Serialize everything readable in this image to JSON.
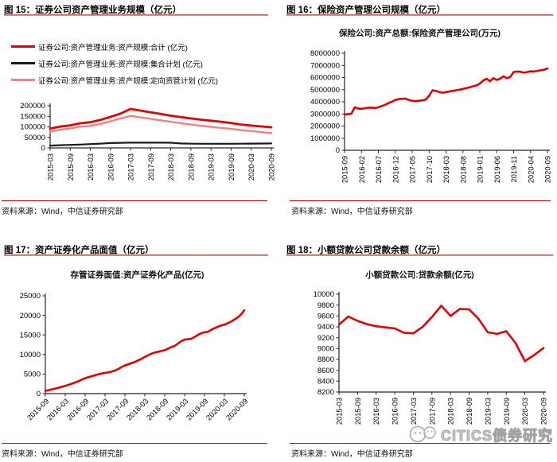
{
  "source_label": "资料来源：Wind，中信证券研究部",
  "watermark": {
    "text": "CITICS债券研究",
    "icon": "wechat-bubbles-icon"
  },
  "colors": {
    "red": "#e00000",
    "pink": "#f48080",
    "black": "#1a1a1a",
    "axis": "#262626",
    "title_rule": "#cf5b5b",
    "source_rule": "#b00c0c",
    "watermark_gray": "#a8a8a8"
  },
  "charts": [
    {
      "id": "fig15",
      "header": "图 15：证券公司资产管理业务规模（亿元）",
      "inner_title": "",
      "chart_data": {
        "type": "line",
        "legend_position": "top-left",
        "grid": false,
        "ylim": [
          0,
          200000
        ],
        "y_ticks": [
          0,
          50000,
          100000,
          150000,
          200000
        ],
        "x_tick_labels": [
          "2015-03",
          "2015-09",
          "2016-03",
          "2016-09",
          "2017-03",
          "2017-09",
          "2018-03",
          "2018-09",
          "2019-03",
          "2019-09",
          "2020-03",
          "2020-09"
        ],
        "x_label_every": 2,
        "categories": [
          "2015-03",
          "2015-06",
          "2015-09",
          "2015-12",
          "2016-03",
          "2016-06",
          "2016-09",
          "2016-12",
          "2017-03",
          "2017-06",
          "2017-09",
          "2017-12",
          "2018-03",
          "2018-06",
          "2018-09",
          "2018-12",
          "2019-03",
          "2019-06",
          "2019-09",
          "2019-12",
          "2020-03",
          "2020-06",
          "2020-09"
        ],
        "series": [
          {
            "name": "证券公司:资产管理业务:资产规模:合计 (亿元)",
            "color": "red",
            "values": [
              92000,
              101000,
              107000,
              117000,
              122000,
              133000,
              147000,
              163000,
              185000,
              177000,
              169000,
              161000,
              153000,
              146000,
              140000,
              134000,
              129000,
              124000,
              118000,
              111000,
              106000,
              102000,
              98000
            ]
          },
          {
            "name": "证券公司:资产管理业务:资产规模:集合计划 (亿元)",
            "color": "black",
            "values": [
              11000,
              13000,
              14500,
              16000,
              18000,
              20500,
              23000,
              24000,
              25000,
              25000,
              25000,
              25000,
              24500,
              21000,
              20000,
              19500,
              19500,
              19600,
              19800,
              20000,
              20300,
              20700,
              21200
            ]
          },
          {
            "name": "证券公司:资产管理业务:资产规模:定向资管计划 (亿元)",
            "color": "pink",
            "values": [
              78000,
              86000,
              92000,
              101000,
              105000,
              114000,
              126000,
              140000,
              152000,
              145000,
              138000,
              131000,
              124000,
              117000,
              111000,
              105000,
              100000,
              95000,
              90000,
              84000,
              80000,
              75000,
              70000
            ]
          }
        ]
      }
    },
    {
      "id": "fig16",
      "header": "图 16：保险资产管理公司规模（亿元）",
      "inner_title": "保险公司:资产总额:保险资产管理公司(万元)",
      "chart_data": {
        "type": "line",
        "grid": false,
        "ylim": [
          0,
          8000000
        ],
        "y_ticks": [
          0,
          1000000,
          2000000,
          3000000,
          4000000,
          5000000,
          6000000,
          7000000,
          8000000
        ],
        "x_tick_labels": [
          "2015-09",
          "2016-02",
          "2016-07",
          "2016-12",
          "2017-05",
          "2017-10",
          "2018-03",
          "2018-08",
          "2019-01",
          "2019-06",
          "2019-11",
          "2020-04",
          "2020-09"
        ],
        "x_label_every": 5,
        "series": [
          {
            "name": "保险公司:资产总额:保险资产管理公司(万元)",
            "color": "red",
            "values": [
              2950000,
              2980000,
              3010000,
              3540000,
              3450000,
              3420000,
              3470000,
              3500000,
              3520000,
              3480000,
              3550000,
              3650000,
              3750000,
              3900000,
              4000000,
              4150000,
              4220000,
              4250000,
              4260000,
              4150000,
              4080000,
              4050000,
              4080000,
              4120000,
              4180000,
              4500000,
              4950000,
              4900000,
              4800000,
              4750000,
              4800000,
              4850000,
              4900000,
              4950000,
              5000000,
              5060000,
              5120000,
              5200000,
              5280000,
              5350000,
              5500000,
              5750000,
              5900000,
              5700000,
              5950000,
              5800000,
              5900000,
              6100000,
              5950000,
              6050000,
              6450000,
              6500000,
              6480000,
              6400000,
              6450000,
              6520000,
              6500000,
              6550000,
              6600000,
              6650000,
              6750000
            ]
          }
        ]
      }
    },
    {
      "id": "fig17",
      "header": "图 17：资产证券化产品面值（亿元）",
      "inner_title": "存管证券面值:资产证券化产品(亿元)",
      "chart_data": {
        "type": "line",
        "grid": false,
        "ylim": [
          0,
          25000
        ],
        "y_ticks": [
          0,
          5000,
          10000,
          15000,
          20000,
          25000
        ],
        "x_tick_labels": [
          "2015-09",
          "2016-03",
          "2016-09",
          "2017-03",
          "2017-09",
          "2018-03",
          "2018-09",
          "2019-03",
          "2019-09",
          "2020-03",
          "2020-09"
        ],
        "x_label_every": 6,
        "series": [
          {
            "name": "存管证券面值:资产证券化产品(亿元)",
            "color": "red",
            "values": [
              700,
              900,
              1100,
              1300,
              1500,
              1750,
              2000,
              2250,
              2550,
              2850,
              3200,
              3600,
              3950,
              4200,
              4450,
              4700,
              4950,
              5150,
              5300,
              5450,
              5600,
              5900,
              6300,
              6800,
              7200,
              7500,
              7800,
              8100,
              8500,
              8900,
              9400,
              9800,
              10200,
              10500,
              10700,
              10900,
              11100,
              11500,
              11900,
              12200,
              12800,
              13400,
              13800,
              13900,
              14000,
              14500,
              15000,
              15400,
              15700,
              15800,
              16300,
              16700,
              17100,
              17400,
              17600,
              18000,
              18400,
              18900,
              19500,
              20200,
              21300
            ]
          }
        ]
      }
    },
    {
      "id": "fig18",
      "header": "图 18：小额贷款公司贷款余额（亿元）",
      "inner_title": "小额贷款公司:贷款余额(亿元)",
      "chart_data": {
        "type": "line",
        "grid": false,
        "ylim": [
          8200,
          10000
        ],
        "y_ticks": [
          8200,
          8400,
          8600,
          8800,
          9000,
          9200,
          9400,
          9600,
          9800,
          10000
        ],
        "x_tick_labels": [
          "2015-03",
          "2015-09",
          "2016-03",
          "2016-09",
          "2017-03",
          "2017-09",
          "2018-03",
          "2018-09",
          "2019-03",
          "2019-09",
          "2020-03",
          "2020-09"
        ],
        "x_label_every": 2,
        "categories": [
          "2015-03",
          "2015-06",
          "2015-09",
          "2015-12",
          "2016-03",
          "2016-06",
          "2016-09",
          "2016-12",
          "2017-03",
          "2017-06",
          "2017-09",
          "2017-12",
          "2018-03",
          "2018-06",
          "2018-09",
          "2018-12",
          "2019-03",
          "2019-06",
          "2019-09",
          "2019-12",
          "2020-03",
          "2020-06",
          "2020-09"
        ],
        "series": [
          {
            "name": "小额贷款公司:贷款余额(亿元)",
            "color": "red",
            "values": [
              9440,
              9590,
              9510,
              9450,
              9410,
              9390,
              9370,
              9290,
              9280,
              9400,
              9580,
              9790,
              9600,
              9730,
              9720,
              9550,
              9300,
              9270,
              9320,
              9100,
              8770,
              8880,
              9010
            ]
          }
        ]
      }
    }
  ]
}
